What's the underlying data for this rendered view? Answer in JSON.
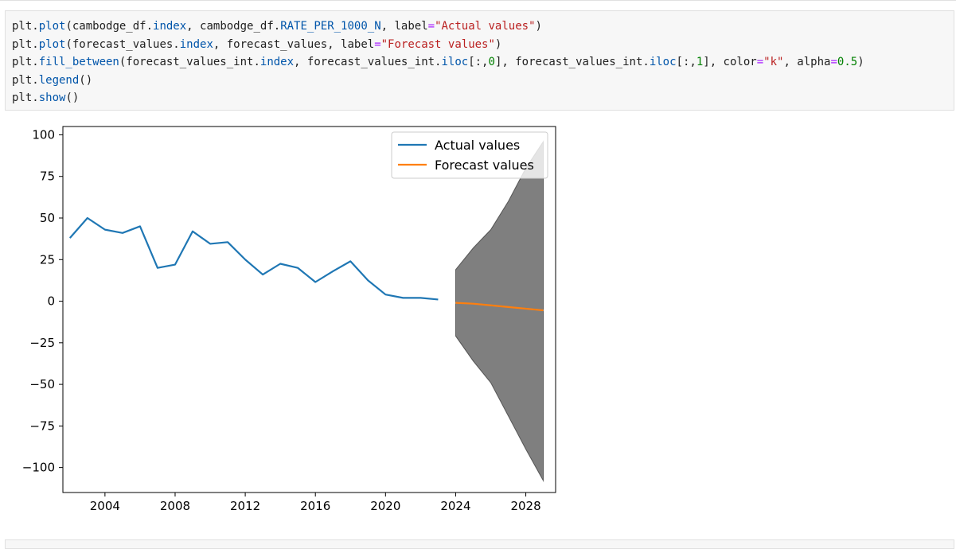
{
  "code": {
    "lines": [
      [
        {
          "t": "plt.",
          "c": "plain"
        },
        {
          "t": "plot",
          "c": "fn"
        },
        {
          "t": "(cambodge_df.",
          "c": "plain"
        },
        {
          "t": "index",
          "c": "fn"
        },
        {
          "t": ", cambodge_df.",
          "c": "plain"
        },
        {
          "t": "RATE_PER_1000_N",
          "c": "fn"
        },
        {
          "t": ", label",
          "c": "plain"
        },
        {
          "t": "=",
          "c": "op"
        },
        {
          "t": "\"Actual values\"",
          "c": "str"
        },
        {
          "t": ")",
          "c": "plain"
        }
      ],
      [
        {
          "t": "plt.",
          "c": "plain"
        },
        {
          "t": "plot",
          "c": "fn"
        },
        {
          "t": "(forecast_values.",
          "c": "plain"
        },
        {
          "t": "index",
          "c": "fn"
        },
        {
          "t": ", forecast_values, label",
          "c": "plain"
        },
        {
          "t": "=",
          "c": "op"
        },
        {
          "t": "\"Forecast values\"",
          "c": "str"
        },
        {
          "t": ")",
          "c": "plain"
        }
      ],
      [
        {
          "t": "plt.",
          "c": "plain"
        },
        {
          "t": "fill_between",
          "c": "fn"
        },
        {
          "t": "(forecast_values_int.",
          "c": "plain"
        },
        {
          "t": "index",
          "c": "fn"
        },
        {
          "t": ", forecast_values_int.",
          "c": "plain"
        },
        {
          "t": "iloc",
          "c": "fn"
        },
        {
          "t": "[:,",
          "c": "plain"
        },
        {
          "t": "0",
          "c": "num"
        },
        {
          "t": "], forecast_values_int.",
          "c": "plain"
        },
        {
          "t": "iloc",
          "c": "fn"
        },
        {
          "t": "[:,",
          "c": "plain"
        },
        {
          "t": "1",
          "c": "num"
        },
        {
          "t": "], color",
          "c": "plain"
        },
        {
          "t": "=",
          "c": "op"
        },
        {
          "t": "\"k\"",
          "c": "str"
        },
        {
          "t": ", alpha",
          "c": "plain"
        },
        {
          "t": "=",
          "c": "op"
        },
        {
          "t": "0.5",
          "c": "num"
        },
        {
          "t": ")",
          "c": "plain"
        }
      ],
      [
        {
          "t": "plt.",
          "c": "plain"
        },
        {
          "t": "legend",
          "c": "fn"
        },
        {
          "t": "()",
          "c": "plain"
        }
      ],
      [
        {
          "t": "plt.",
          "c": "plain"
        },
        {
          "t": "show",
          "c": "fn"
        },
        {
          "t": "()",
          "c": "plain"
        }
      ]
    ]
  },
  "chart_data": {
    "type": "line",
    "title": "",
    "xlabel": "",
    "ylabel": "",
    "xlim": [
      2001.6,
      2029.7
    ],
    "ylim": [
      -115,
      105
    ],
    "xticks": [
      2004,
      2008,
      2012,
      2016,
      2020,
      2024,
      2028
    ],
    "yticks": [
      100,
      75,
      50,
      25,
      0,
      -25,
      -50,
      -75,
      -100
    ],
    "ytick_labels": [
      "100",
      "75",
      "50",
      "25",
      "0",
      "−25",
      "−50",
      "−75",
      "−100"
    ],
    "grid": false,
    "legend_position": "top-right",
    "series": [
      {
        "name": "Actual values",
        "color": "#1f77b4",
        "x": [
          2002,
          2003,
          2004,
          2005,
          2006,
          2007,
          2008,
          2009,
          2010,
          2011,
          2012,
          2013,
          2014,
          2015,
          2016,
          2017,
          2018,
          2019,
          2020,
          2021,
          2022,
          2023
        ],
        "y": [
          38,
          50,
          43,
          41,
          45,
          20,
          22,
          42,
          34.5,
          35.5,
          25,
          16,
          22.5,
          20,
          11.5,
          18,
          24,
          12.5,
          4,
          2,
          2,
          1
        ]
      },
      {
        "name": "Forecast values",
        "color": "#ff7f0e",
        "x": [
          2024,
          2025,
          2026,
          2027,
          2028,
          2029
        ],
        "y": [
          -1,
          -1.5,
          -2.5,
          -3.5,
          -4.5,
          -5.5
        ]
      }
    ],
    "fill_between": {
      "color": "#000000",
      "alpha": 0.5,
      "x": [
        2024,
        2025,
        2026,
        2027,
        2028,
        2029
      ],
      "lower": [
        -21,
        -36,
        -49,
        -69,
        -89,
        -108
      ],
      "upper": [
        19,
        32,
        43,
        60,
        80,
        96
      ]
    }
  }
}
